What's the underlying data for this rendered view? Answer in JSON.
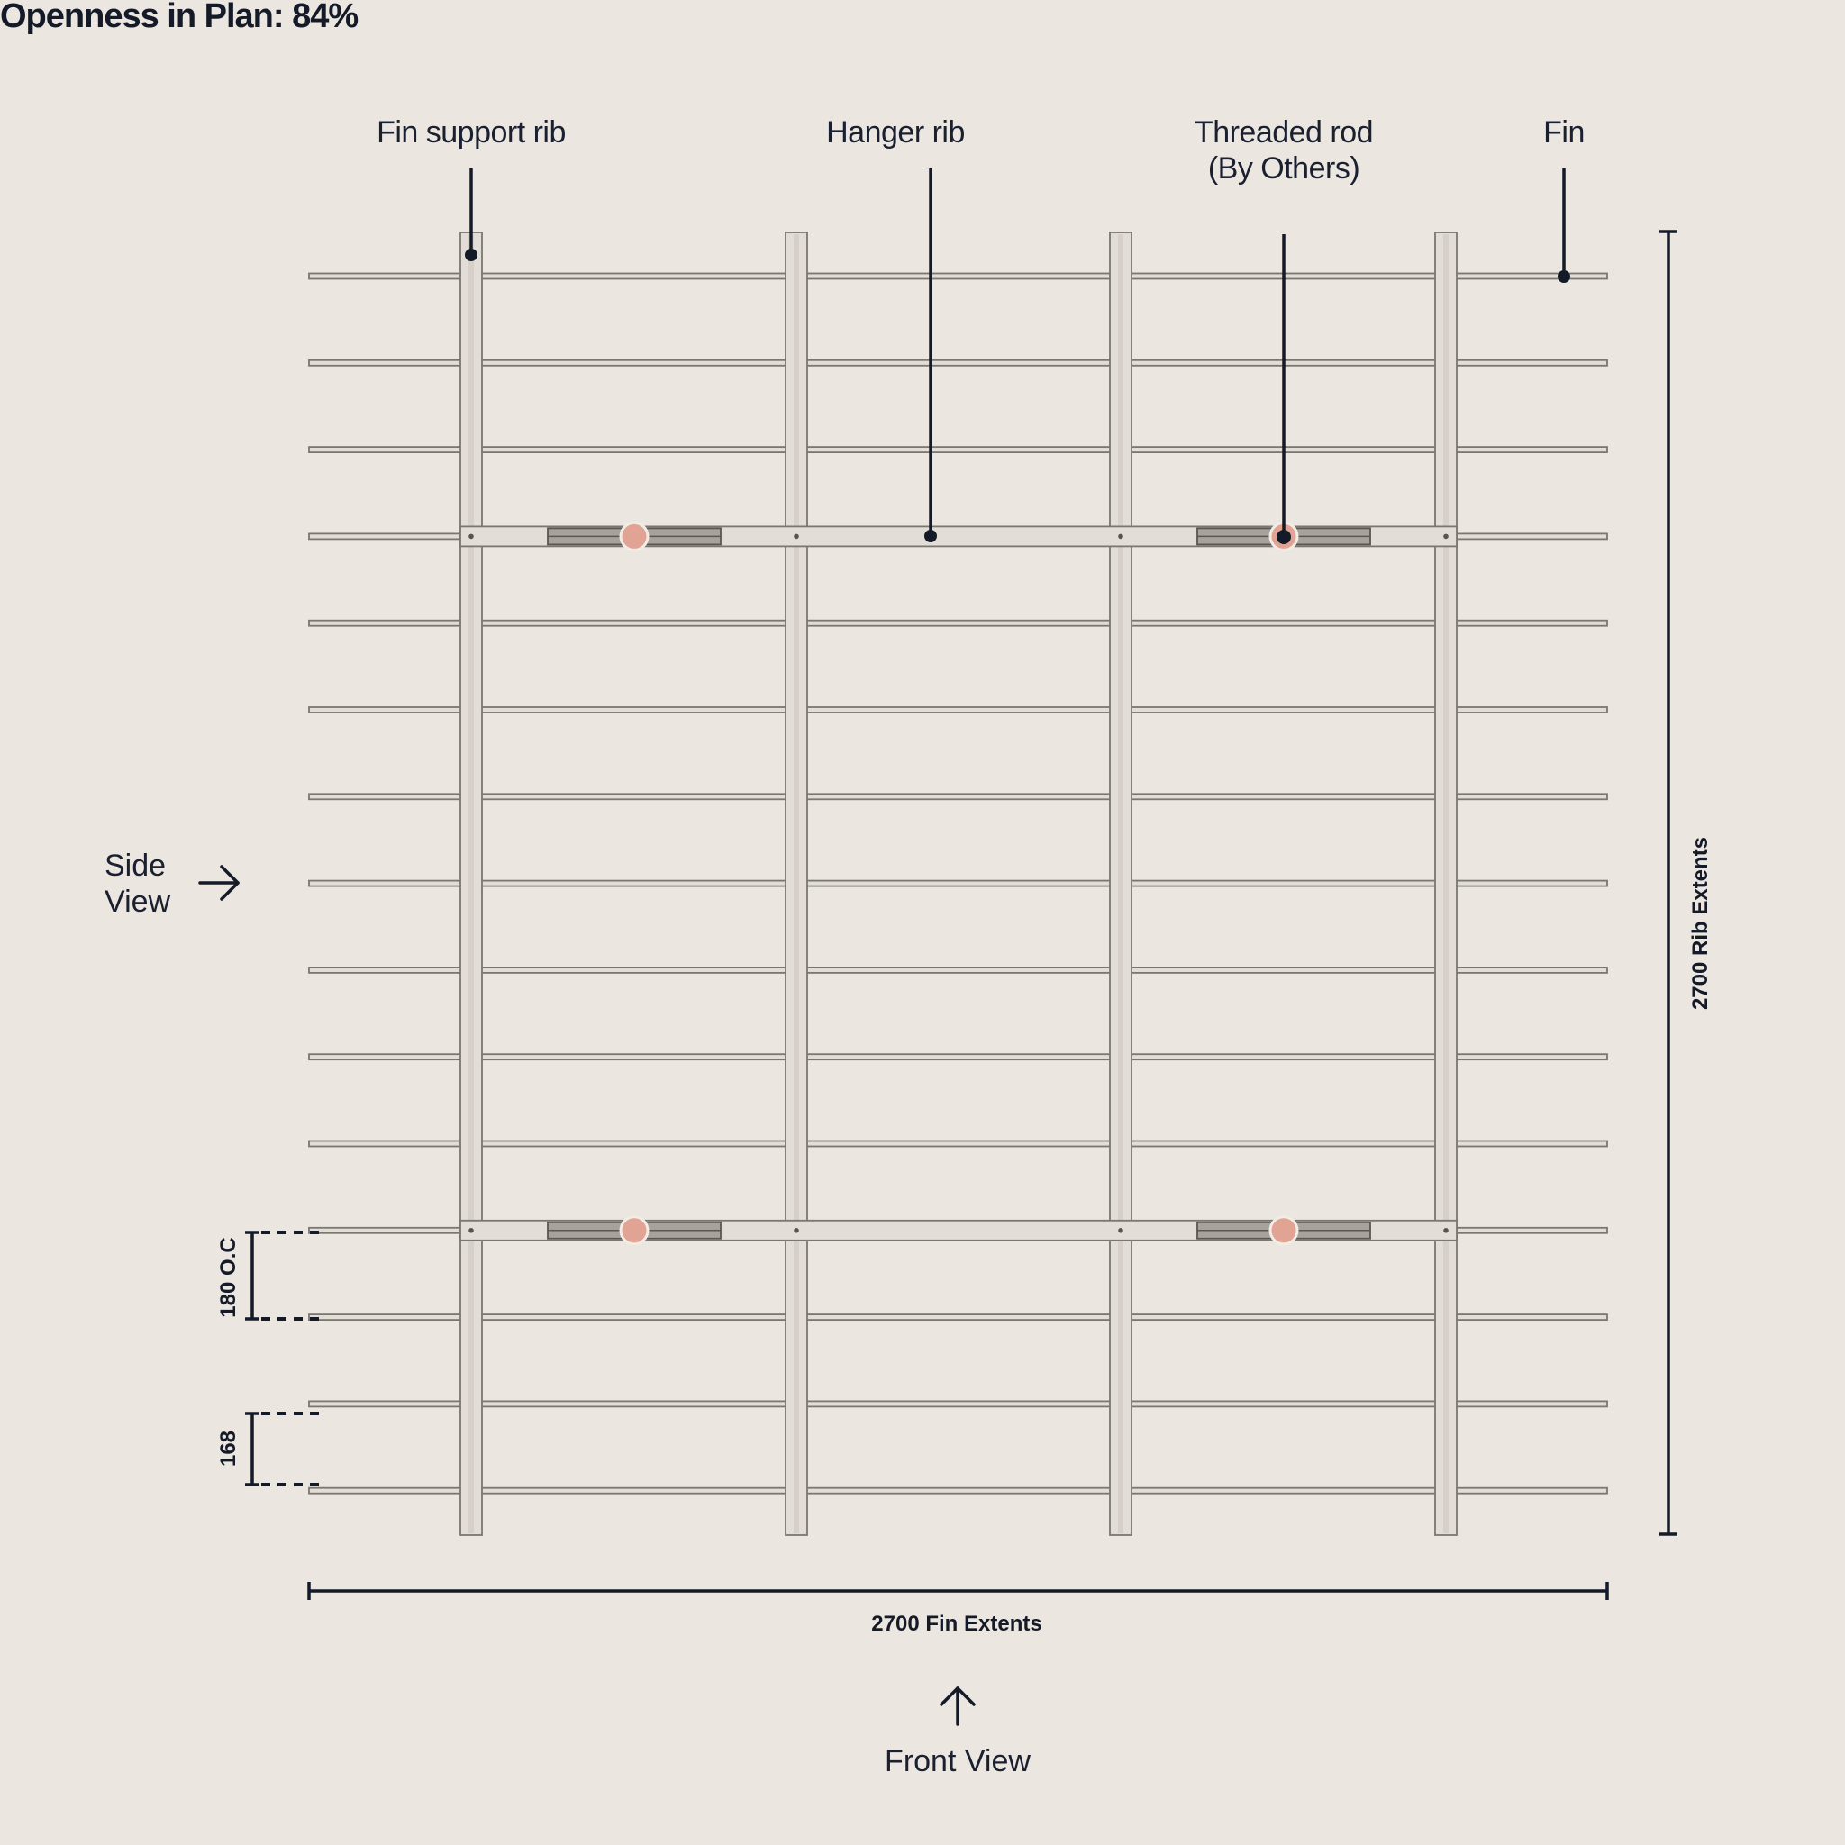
{
  "title": "Openness in Plan: 84%",
  "labels": {
    "fin_support_rib": "Fin support rib",
    "hanger_rib": "Hanger rib",
    "threaded_rod_line1": "Threaded rod",
    "threaded_rod_line2": "(By Others)",
    "fin": "Fin"
  },
  "dimensions": {
    "fin_extents": "2700 Fin Extents",
    "rib_extents": "2700 Rib Extents",
    "oc_spacing": "180 O.C",
    "gap": "168"
  },
  "views": {
    "side_line1": "Side",
    "side_line2": "View",
    "front": "Front View"
  },
  "colors": {
    "background": "#ebe6e0",
    "ink": "#141a28",
    "member_fill": "#e2ddd6",
    "member_stroke": "#7a7670",
    "rod_marker": "#e0a394"
  },
  "icons": {
    "side_arrow": "arrow-right-icon",
    "front_arrow": "arrow-up-icon"
  }
}
